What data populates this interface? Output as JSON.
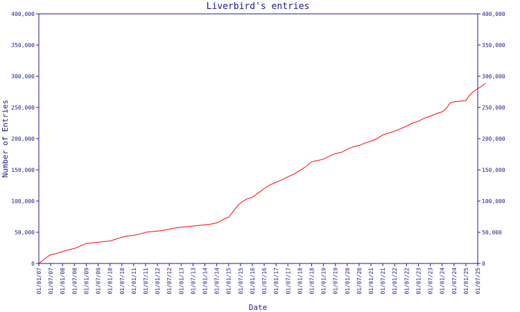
{
  "chart_data": {
    "type": "line",
    "title": "Liverbird's entries",
    "xlabel": "Date",
    "ylabel": "Number of Entries",
    "ylim": [
      0,
      400000
    ],
    "yticks": [
      {
        "value": 0,
        "label": "0"
      },
      {
        "value": 50000,
        "label": "50,000"
      },
      {
        "value": 100000,
        "label": "100,000"
      },
      {
        "value": 150000,
        "label": "150,000"
      },
      {
        "value": 200000,
        "label": "200,000"
      },
      {
        "value": 250000,
        "label": "250,000"
      },
      {
        "value": 300000,
        "label": "300,000"
      },
      {
        "value": 350000,
        "label": "350,000"
      },
      {
        "value": 400000,
        "label": "400,000"
      }
    ],
    "xticks": [
      "01/01/07",
      "01/07/07",
      "01/01/08",
      "01/07/08",
      "01/01/09",
      "01/07/09",
      "01/01/10",
      "01/07/10",
      "01/01/11",
      "01/07/11",
      "01/01/12",
      "01/07/12",
      "01/01/13",
      "01/07/13",
      "01/01/14",
      "01/07/14",
      "01/01/15",
      "01/07/15",
      "01/01/16",
      "01/07/16",
      "01/01/17",
      "01/07/17",
      "01/01/18",
      "01/07/18",
      "01/01/19",
      "01/07/19",
      "01/01/20",
      "01/07/20",
      "01/01/21",
      "01/07/21",
      "01/01/22",
      "01/07/22",
      "01/01/23",
      "01/07/23",
      "01/01/24",
      "01/07/24",
      "01/01/25",
      "01/07/25"
    ],
    "grid": false,
    "series": [
      {
        "color": "#ff0000",
        "points": [
          [
            "01/01/07",
            0
          ],
          [
            "01/03/07",
            5000
          ],
          [
            "01/05/07",
            10000
          ],
          [
            "01/07/07",
            14000
          ],
          [
            "01/10/07",
            16000
          ],
          [
            "01/01/08",
            19000
          ],
          [
            "01/04/08",
            22000
          ],
          [
            "01/07/08",
            24000
          ],
          [
            "01/10/08",
            28000
          ],
          [
            "01/01/09",
            32000
          ],
          [
            "01/04/09",
            33000
          ],
          [
            "01/07/09",
            34000
          ],
          [
            "01/10/09",
            35000
          ],
          [
            "01/01/10",
            36000
          ],
          [
            "01/04/10",
            39000
          ],
          [
            "01/07/10",
            42000
          ],
          [
            "01/10/10",
            44000
          ],
          [
            "01/01/11",
            45000
          ],
          [
            "01/04/11",
            47000
          ],
          [
            "01/07/11",
            50000
          ],
          [
            "01/10/11",
            51000
          ],
          [
            "01/01/12",
            52000
          ],
          [
            "01/04/12",
            53000
          ],
          [
            "01/07/12",
            55000
          ],
          [
            "01/10/12",
            57000
          ],
          [
            "01/01/13",
            58000
          ],
          [
            "01/04/13",
            59000
          ],
          [
            "01/07/13",
            60000
          ],
          [
            "01/10/13",
            61000
          ],
          [
            "01/01/14",
            62000
          ],
          [
            "01/04/14",
            63000
          ],
          [
            "01/07/14",
            65000
          ],
          [
            "01/09/14",
            68000
          ],
          [
            "01/11/14",
            72000
          ],
          [
            "01/01/15",
            74000
          ],
          [
            "01/03/15",
            82000
          ],
          [
            "01/05/15",
            90000
          ],
          [
            "01/07/15",
            97000
          ],
          [
            "01/10/15",
            103000
          ],
          [
            "01/01/16",
            106000
          ],
          [
            "01/04/16",
            113000
          ],
          [
            "01/07/16",
            120000
          ],
          [
            "01/10/16",
            126000
          ],
          [
            "01/01/17",
            130000
          ],
          [
            "01/04/17",
            134000
          ],
          [
            "01/07/17",
            139000
          ],
          [
            "01/10/17",
            143000
          ],
          [
            "01/01/18",
            149000
          ],
          [
            "01/04/18",
            155000
          ],
          [
            "01/07/18",
            163000
          ],
          [
            "01/10/18",
            165000
          ],
          [
            "01/01/19",
            167000
          ],
          [
            "01/04/19",
            172000
          ],
          [
            "01/07/19",
            176000
          ],
          [
            "01/10/19",
            178000
          ],
          [
            "01/01/20",
            183000
          ],
          [
            "01/04/20",
            187000
          ],
          [
            "01/07/20",
            189000
          ],
          [
            "01/10/20",
            193000
          ],
          [
            "01/01/21",
            196000
          ],
          [
            "01/04/21",
            200000
          ],
          [
            "01/07/21",
            206000
          ],
          [
            "01/10/21",
            209000
          ],
          [
            "01/01/22",
            212000
          ],
          [
            "01/04/22",
            216000
          ],
          [
            "01/07/22",
            220000
          ],
          [
            "01/10/22",
            225000
          ],
          [
            "01/01/23",
            228000
          ],
          [
            "01/04/23",
            233000
          ],
          [
            "01/07/23",
            236000
          ],
          [
            "01/10/23",
            240000
          ],
          [
            "01/01/24",
            243000
          ],
          [
            "01/03/24",
            248000
          ],
          [
            "01/05/24",
            257000
          ],
          [
            "01/07/24",
            259000
          ],
          [
            "01/10/24",
            260000
          ],
          [
            "01/01/25",
            261000
          ],
          [
            "01/03/25",
            270000
          ],
          [
            "01/05/25",
            276000
          ],
          [
            "01/07/25",
            280000
          ],
          [
            "01/09/25",
            284000
          ],
          [
            "01/11/25",
            289000
          ]
        ]
      }
    ],
    "colors": {
      "axis": "#1a1a8c",
      "line": "#ff0000",
      "text": "#1a1a8c"
    }
  }
}
